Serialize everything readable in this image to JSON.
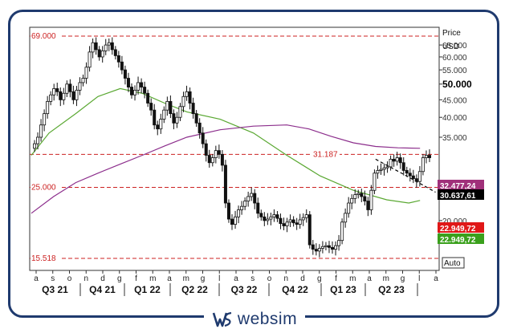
{
  "brand": {
    "name": "websim"
  },
  "chart_data": {
    "type": "candlestick",
    "axis": {
      "title": "Price",
      "unit": "USD",
      "ylim": [
        13,
        70
      ],
      "scale": "log",
      "ticks": [
        "65.000",
        "60.000",
        "55.000",
        "50.000",
        "45.000",
        "40.000",
        "35.000",
        "25.000",
        "20.000"
      ],
      "tick_values": [
        65000,
        60000,
        55000,
        50000,
        45000,
        40000,
        35000,
        25000,
        20000
      ],
      "bold_tick": "50.000"
    },
    "month_ticks": [
      "a",
      "s",
      "o",
      "n",
      "d",
      "g",
      "f",
      "m",
      "a",
      "m",
      "g",
      "l",
      "a",
      "s",
      "o",
      "n",
      "d",
      "g",
      "f",
      "m",
      "a",
      "m",
      "g",
      "l",
      "a"
    ],
    "quarters": [
      "Q3 21",
      "Q4 21",
      "Q1 22",
      "Q2 22",
      "Q3 22",
      "Q4 22",
      "Q1 23",
      "Q2 23"
    ],
    "reference_lines": [
      {
        "label": "69.000",
        "value": 69000,
        "label_side": "left"
      },
      {
        "label": "31.187",
        "value": 31187,
        "label_side": "right"
      },
      {
        "label": "25.000",
        "value": 25000,
        "label_side": "left"
      },
      {
        "label": "15.518",
        "value": 15518,
        "label_side": "left"
      }
    ],
    "price_badges": [
      {
        "label": "32.477,24",
        "value": 32477,
        "color": "#a0307a"
      },
      {
        "label": "30.637,61",
        "value": 30637,
        "color": "#000000"
      },
      {
        "label": "22.949,72",
        "value": 22949,
        "color": "#e01818"
      },
      {
        "label": "22.949,72",
        "value": 22949,
        "color": "#3aa01c"
      }
    ],
    "auto_label": "Auto",
    "series": [
      {
        "name": "",
        "kind": "moving_average_short",
        "color": "#5aa832",
        "points": [
          [
            0,
            31000
          ],
          [
            8,
            36000
          ],
          [
            20,
            41000
          ],
          [
            30,
            46000
          ],
          [
            40,
            48500
          ],
          [
            50,
            47000
          ],
          [
            60,
            44000
          ],
          [
            70,
            41500
          ],
          [
            85,
            39500
          ],
          [
            100,
            36000
          ],
          [
            115,
            31000
          ],
          [
            130,
            27000
          ],
          [
            145,
            24500
          ],
          [
            160,
            23000
          ],
          [
            170,
            22500
          ],
          [
            175,
            22900
          ]
        ]
      },
      {
        "name": "",
        "kind": "moving_average_long",
        "color": "#8c2e8c",
        "points": [
          [
            0,
            21000
          ],
          [
            10,
            23500
          ],
          [
            20,
            25800
          ],
          [
            30,
            27500
          ],
          [
            40,
            29200
          ],
          [
            50,
            31000
          ],
          [
            60,
            33000
          ],
          [
            70,
            35000
          ],
          [
            85,
            36800
          ],
          [
            100,
            37700
          ],
          [
            115,
            38000
          ],
          [
            125,
            37000
          ],
          [
            135,
            35200
          ],
          [
            145,
            33700
          ],
          [
            155,
            32900
          ],
          [
            165,
            32600
          ],
          [
            175,
            32500
          ]
        ]
      },
      {
        "name": "",
        "kind": "trend_dashed",
        "color": "#000000",
        "points": [
          [
            155,
            30200
          ],
          [
            168,
            27200
          ],
          [
            182,
            24200
          ]
        ]
      }
    ],
    "candles_close": [
      33500,
      35000,
      38000,
      41000,
      44500,
      46500,
      48500,
      47500,
      45000,
      47000,
      50000,
      47500,
      45000,
      48000,
      50500,
      52000,
      56000,
      62000,
      66000,
      63000,
      60000,
      62500,
      65000,
      66000,
      63000,
      60500,
      58000,
      55000,
      52000,
      49000,
      46500,
      48000,
      50500,
      49000,
      47000,
      44000,
      42000,
      38000,
      37000,
      39500,
      42000,
      44500,
      41000,
      38500,
      40000,
      43000,
      46000,
      47500,
      44000,
      41000,
      38500,
      36000,
      33500,
      31000,
      29500,
      30500,
      32000,
      31200,
      29000,
      22500,
      20200,
      19500,
      20500,
      21500,
      22000,
      22800,
      23500,
      24000,
      22500,
      21000,
      20500,
      20000,
      20200,
      20500,
      20800,
      20300,
      19600,
      19300,
      19800,
      20100,
      19700,
      19500,
      20100,
      20400,
      20800,
      17000,
      16500,
      16300,
      16600,
      16800,
      16900,
      16700,
      16500,
      16900,
      17500,
      19800,
      21000,
      22500,
      23200,
      23800,
      24000,
      23500,
      22800,
      21500,
      24500,
      27500,
      28000,
      28200,
      28500,
      28700,
      30200,
      29800,
      30500,
      29500,
      28000,
      27500,
      27000,
      26500,
      26000,
      27800,
      30500,
      31000,
      30500
    ]
  }
}
